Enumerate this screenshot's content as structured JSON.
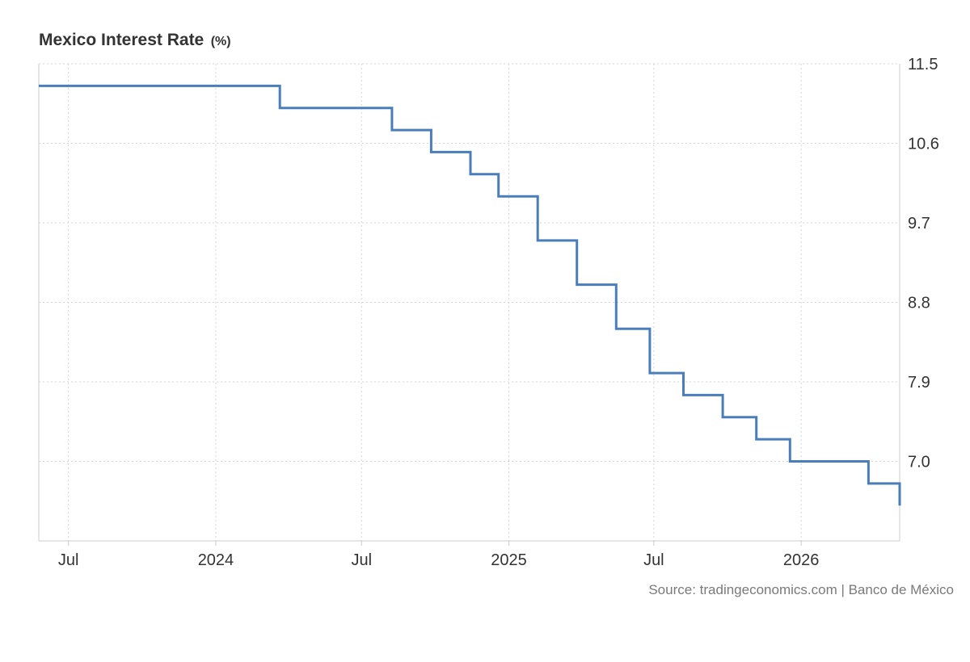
{
  "header": {
    "title": "Mexico Interest Rate",
    "units": "(%)"
  },
  "source": "Source: tradingeconomics.com | Banco de México",
  "colors": {
    "line": "#4a7ebb",
    "grid": "#d6d6d6",
    "axis": "#cccccc",
    "tick_text": "#333333"
  },
  "chart_data": {
    "type": "line",
    "step": true,
    "title": "Mexico Interest Rate",
    "units": "%",
    "xlabel": "",
    "ylabel": "",
    "y_axis_position": "right",
    "grid": true,
    "legend": "none",
    "xlim": [
      "2023-05-25",
      "2026-05-04"
    ],
    "ylim": [
      6.1,
      11.5
    ],
    "y_ticks": [
      "7.0",
      "7.9",
      "8.8",
      "9.7",
      "10.6",
      "11.5"
    ],
    "x_ticks": [
      {
        "date": "2023-07-01",
        "label": "Jul"
      },
      {
        "date": "2024-01-01",
        "label": "2024"
      },
      {
        "date": "2024-07-01",
        "label": "Jul"
      },
      {
        "date": "2025-01-01",
        "label": "2025"
      },
      {
        "date": "2025-07-01",
        "label": "Jul"
      },
      {
        "date": "2026-01-01",
        "label": "2026"
      }
    ],
    "series": [
      {
        "values": [
          {
            "x": "2023-05-25",
            "y": 11.25
          },
          {
            "x": "2024-03-21",
            "y": 11.0
          },
          {
            "x": "2024-08-08",
            "y": 10.75
          },
          {
            "x": "2024-09-26",
            "y": 10.5
          },
          {
            "x": "2024-11-14",
            "y": 10.25
          },
          {
            "x": "2024-12-19",
            "y": 10.0
          },
          {
            "x": "2025-02-06",
            "y": 9.5
          },
          {
            "x": "2025-03-27",
            "y": 9.0
          },
          {
            "x": "2025-05-15",
            "y": 8.5
          },
          {
            "x": "2025-06-26",
            "y": 8.0
          },
          {
            "x": "2025-08-07",
            "y": 7.75
          },
          {
            "x": "2025-09-25",
            "y": 7.5
          },
          {
            "x": "2025-11-06",
            "y": 7.25
          },
          {
            "x": "2025-12-18",
            "y": 7.0
          },
          {
            "x": "2026-03-26",
            "y": 6.75
          },
          {
            "x": "2026-05-04",
            "y": 6.5
          }
        ]
      }
    ]
  }
}
